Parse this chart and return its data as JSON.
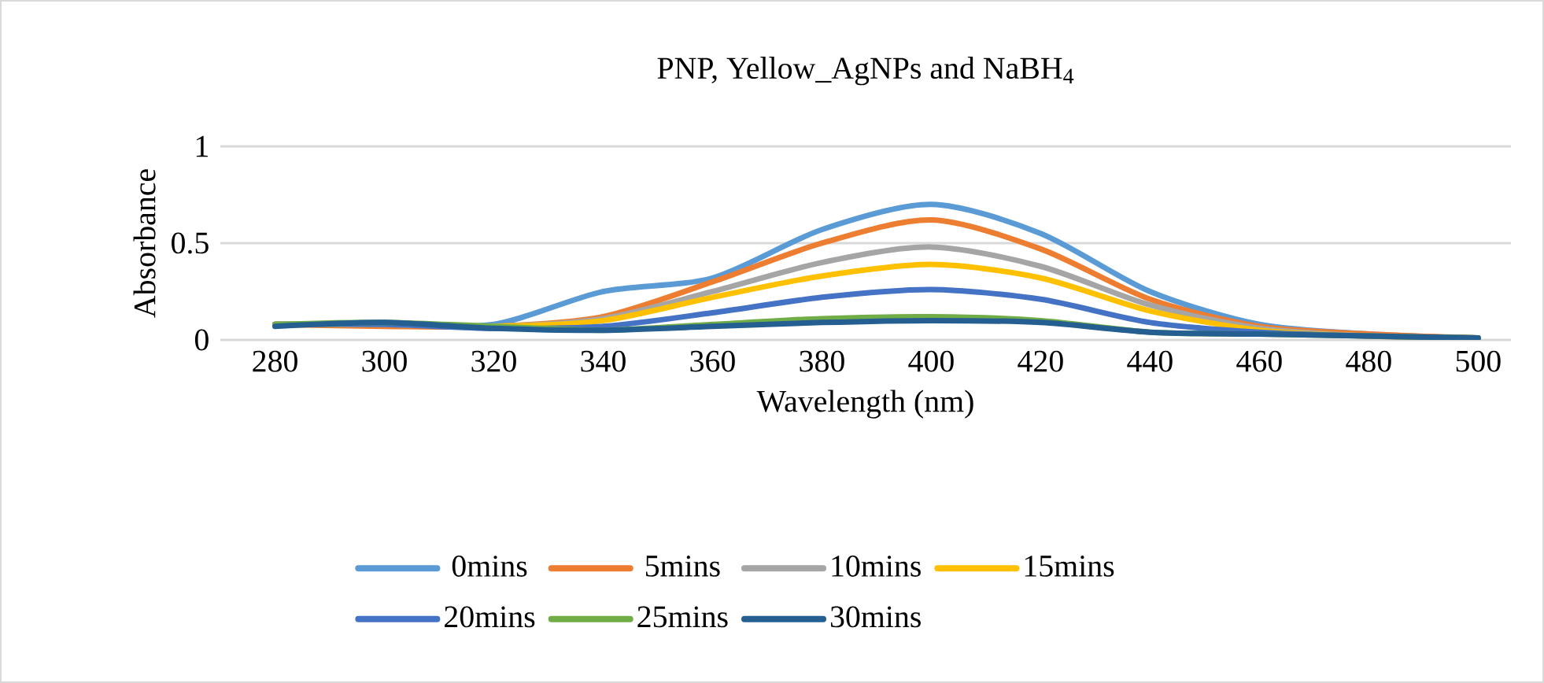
{
  "chart_data": {
    "type": "line",
    "title": "PNP, Yellow_AgNPs and NaBH$_{4}$",
    "xlabel": "Wavelength (nm)",
    "ylabel": "Absorbance",
    "x": [
      280,
      300,
      320,
      340,
      360,
      380,
      400,
      420,
      440,
      460,
      480,
      500
    ],
    "xlim": [
      270,
      506
    ],
    "ylim": [
      0,
      1
    ],
    "xticks": [
      280,
      300,
      320,
      340,
      360,
      380,
      400,
      420,
      440,
      460,
      480,
      500
    ],
    "yticks": [
      0,
      0.5,
      1
    ],
    "grid": "y",
    "legend": "bottom",
    "series": [
      {
        "name": "0mins",
        "color": "#5b9bd5",
        "values": [
          0.08,
          0.08,
          0.08,
          0.25,
          0.32,
          0.57,
          0.7,
          0.55,
          0.25,
          0.08,
          0.03,
          0.01
        ]
      },
      {
        "name": "5mins",
        "color": "#ed7d31",
        "values": [
          0.08,
          0.07,
          0.07,
          0.12,
          0.3,
          0.5,
          0.62,
          0.47,
          0.21,
          0.07,
          0.03,
          0.01
        ]
      },
      {
        "name": "10mins",
        "color": "#a5a5a5",
        "values": [
          0.08,
          0.08,
          0.07,
          0.11,
          0.25,
          0.4,
          0.48,
          0.38,
          0.18,
          0.06,
          0.02,
          0.01
        ]
      },
      {
        "name": "15mins",
        "color": "#ffc000",
        "values": [
          0.08,
          0.08,
          0.07,
          0.1,
          0.22,
          0.33,
          0.39,
          0.32,
          0.15,
          0.05,
          0.02,
          0.01
        ]
      },
      {
        "name": "20mins",
        "color": "#4472c4",
        "values": [
          0.08,
          0.08,
          0.06,
          0.07,
          0.14,
          0.22,
          0.26,
          0.21,
          0.09,
          0.04,
          0.02,
          0.01
        ]
      },
      {
        "name": "25mins",
        "color": "#70ad47",
        "values": [
          0.08,
          0.09,
          0.07,
          0.05,
          0.08,
          0.11,
          0.12,
          0.1,
          0.04,
          0.03,
          0.02,
          0.01
        ]
      },
      {
        "name": "30mins",
        "color": "#255e91",
        "values": [
          0.07,
          0.09,
          0.06,
          0.05,
          0.07,
          0.09,
          0.1,
          0.09,
          0.04,
          0.03,
          0.02,
          0.01
        ]
      }
    ]
  }
}
